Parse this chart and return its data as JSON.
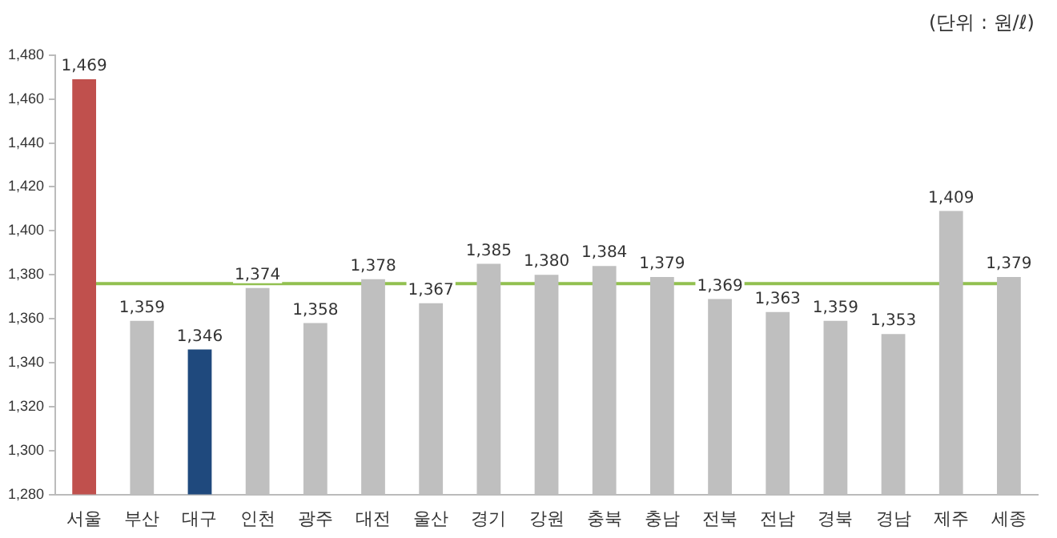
{
  "chart_data": {
    "type": "bar",
    "annotations": [
      "(단위 : 원/ℓ)"
    ],
    "categories": [
      "서울",
      "부산",
      "대구",
      "인천",
      "광주",
      "대전",
      "울산",
      "경기",
      "강원",
      "충북",
      "충남",
      "전북",
      "전남",
      "경북",
      "경남",
      "제주",
      "세종"
    ],
    "values": [
      1469,
      1359,
      1346,
      1374,
      1358,
      1378,
      1367,
      1385,
      1380,
      1384,
      1379,
      1369,
      1363,
      1359,
      1353,
      1409,
      1379
    ],
    "colors": [
      "#c0504d",
      "#bfbfbf",
      "#1f497d",
      "#bfbfbf",
      "#bfbfbf",
      "#bfbfbf",
      "#bfbfbf",
      "#bfbfbf",
      "#bfbfbf",
      "#bfbfbf",
      "#bfbfbf",
      "#bfbfbf",
      "#bfbfbf",
      "#bfbfbf",
      "#bfbfbf",
      "#bfbfbf",
      "#bfbfbf"
    ],
    "value_labels": [
      "1,469",
      "1,359",
      "1,346",
      "1,374",
      "1,358",
      "1,378",
      "1,367",
      "1,385",
      "1,380",
      "1,384",
      "1,379",
      "1,369",
      "1,363",
      "1,359",
      "1,353",
      "1,409",
      "1,379"
    ],
    "ylim": [
      1280,
      1480
    ],
    "yticks": [
      {
        "value": 1280,
        "label": "1,280"
      },
      {
        "value": 1300,
        "label": "1,300"
      },
      {
        "value": 1320,
        "label": "1,320"
      },
      {
        "value": 1340,
        "label": "1,340"
      },
      {
        "value": 1360,
        "label": "1,360"
      },
      {
        "value": 1380,
        "label": "1,380"
      },
      {
        "value": 1400,
        "label": "1,400"
      },
      {
        "value": 1420,
        "label": "1,420"
      },
      {
        "value": 1440,
        "label": "1,440"
      },
      {
        "value": 1460,
        "label": "1,460"
      },
      {
        "value": 1480,
        "label": "1,480"
      }
    ],
    "ref_lines": [
      {
        "axis": "y",
        "value": 1376,
        "color": "#92c050"
      }
    ],
    "grid": false,
    "legend": false
  }
}
